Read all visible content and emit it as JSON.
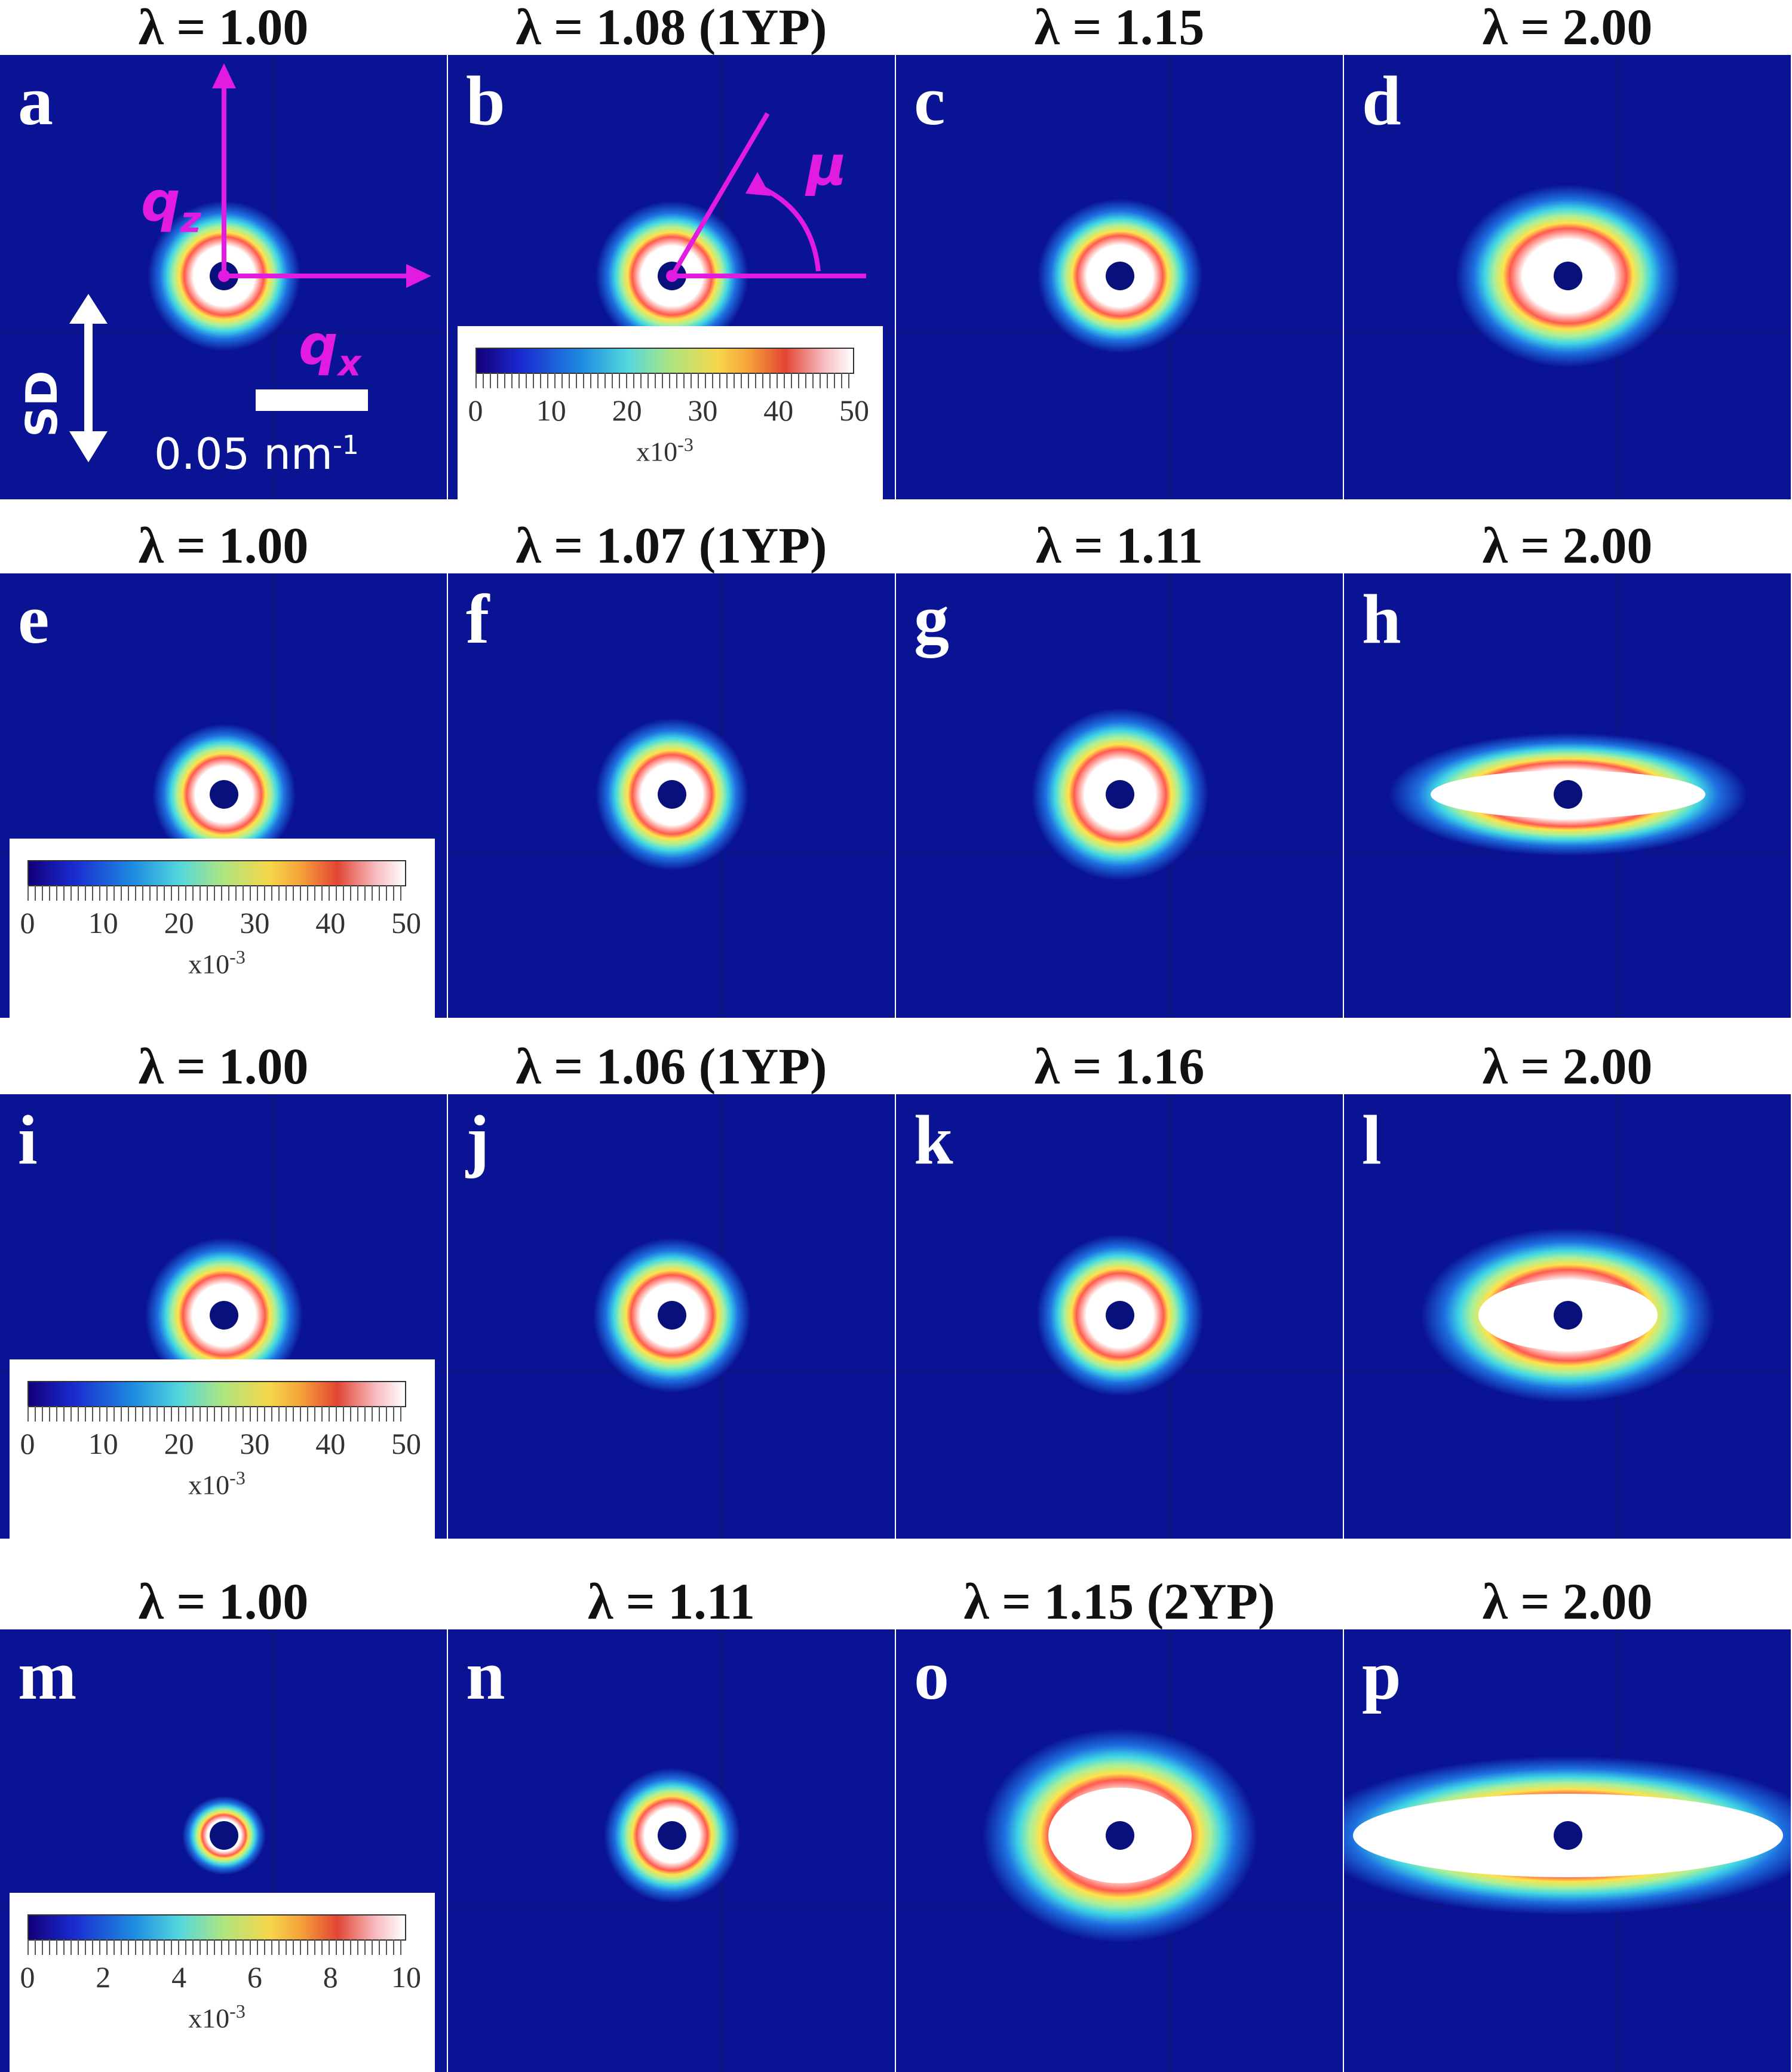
{
  "rows": [
    {
      "panels": [
        {
          "letter": "a",
          "title": "λ = 1.00",
          "shape": {
            "rx": 44,
            "ry": 50,
            "halo": 84,
            "core": false
          }
        },
        {
          "letter": "b",
          "title": "λ = 1.08 (1YP)",
          "shape": {
            "rx": 44,
            "ry": 50,
            "halo": 84,
            "core": false
          }
        },
        {
          "letter": "c",
          "title": "λ = 1.15",
          "shape": {
            "rx": 50,
            "ry": 50,
            "halo": 88,
            "core": false
          }
        },
        {
          "letter": "d",
          "title": "λ = 2.00",
          "shape": {
            "rx": 78,
            "ry": 54,
            "halo": 110,
            "core": true
          }
        }
      ],
      "colorbar_panel": 1
    },
    {
      "panels": [
        {
          "letter": "e",
          "title": "λ = 1.00",
          "shape": {
            "rx": 40,
            "ry": 46,
            "halo": 80,
            "core": false
          }
        },
        {
          "letter": "f",
          "title": "λ = 1.07 (1YP)",
          "shape": {
            "rx": 44,
            "ry": 52,
            "halo": 84,
            "core": false
          }
        },
        {
          "letter": "g",
          "title": "λ = 1.11",
          "shape": {
            "rx": 52,
            "ry": 58,
            "halo": 96,
            "core": true
          }
        },
        {
          "letter": "h",
          "title": "λ = 2.00",
          "shape": {
            "rx": 230,
            "ry": 40,
            "halo": 70,
            "core": true
          }
        }
      ],
      "colorbar_panel": 0
    },
    {
      "panels": [
        {
          "letter": "i",
          "title": "λ = 1.00",
          "shape": {
            "rx": 48,
            "ry": 54,
            "halo": 84,
            "core": false
          }
        },
        {
          "letter": "j",
          "title": "λ = 1.06 (1YP)",
          "shape": {
            "rx": 48,
            "ry": 54,
            "halo": 84,
            "core": false
          }
        },
        {
          "letter": "k",
          "title": "λ = 1.16",
          "shape": {
            "rx": 52,
            "ry": 56,
            "halo": 88,
            "core": false
          }
        },
        {
          "letter": "l",
          "title": "λ = 2.00",
          "shape": {
            "rx": 150,
            "ry": 60,
            "halo": 96,
            "core": true
          }
        }
      ],
      "colorbar_panel": 0
    },
    {
      "panels": [
        {
          "letter": "m",
          "title": "λ = 1.00",
          "shape": {
            "rx": 30,
            "ry": 30,
            "halo": 40,
            "core": false
          }
        },
        {
          "letter": "n",
          "title": "λ = 1.11",
          "shape": {
            "rx": 44,
            "ry": 50,
            "halo": 70,
            "core": false
          }
        },
        {
          "letter": "o",
          "title": "λ = 1.15 (2YP)",
          "shape": {
            "rx": 120,
            "ry": 80,
            "halo": 110,
            "core": true
          }
        },
        {
          "letter": "p",
          "title": "λ = 2.00",
          "shape": {
            "rx": 360,
            "ry": 70,
            "halo": 70,
            "core": true
          }
        }
      ],
      "colorbar_panel": 0
    }
  ],
  "colorbars": [
    {
      "ticks": [
        "0",
        "10",
        "20",
        "30",
        "40",
        "50"
      ],
      "unit": "x10",
      "exp": "-3"
    },
    {
      "ticks": [
        "0",
        "10",
        "20",
        "30",
        "40",
        "50"
      ],
      "unit": "x10",
      "exp": "-3"
    },
    {
      "ticks": [
        "0",
        "10",
        "20",
        "30",
        "40",
        "50"
      ],
      "unit": "x10",
      "exp": "-3"
    },
    {
      "ticks": [
        "0",
        "2",
        "4",
        "6",
        "8",
        "10"
      ],
      "unit": "x10",
      "exp": "-3"
    }
  ],
  "annotations": {
    "qz": "q",
    "qz_sub": "z",
    "qx": "q",
    "qx_sub": "x",
    "mu": "μ",
    "sd": "SD",
    "scale_value": "0.05 nm",
    "scale_exp": "-1"
  },
  "colors": {
    "background": "#0a1394",
    "annotation": "#e21be0",
    "beamstop": "#08107c"
  }
}
